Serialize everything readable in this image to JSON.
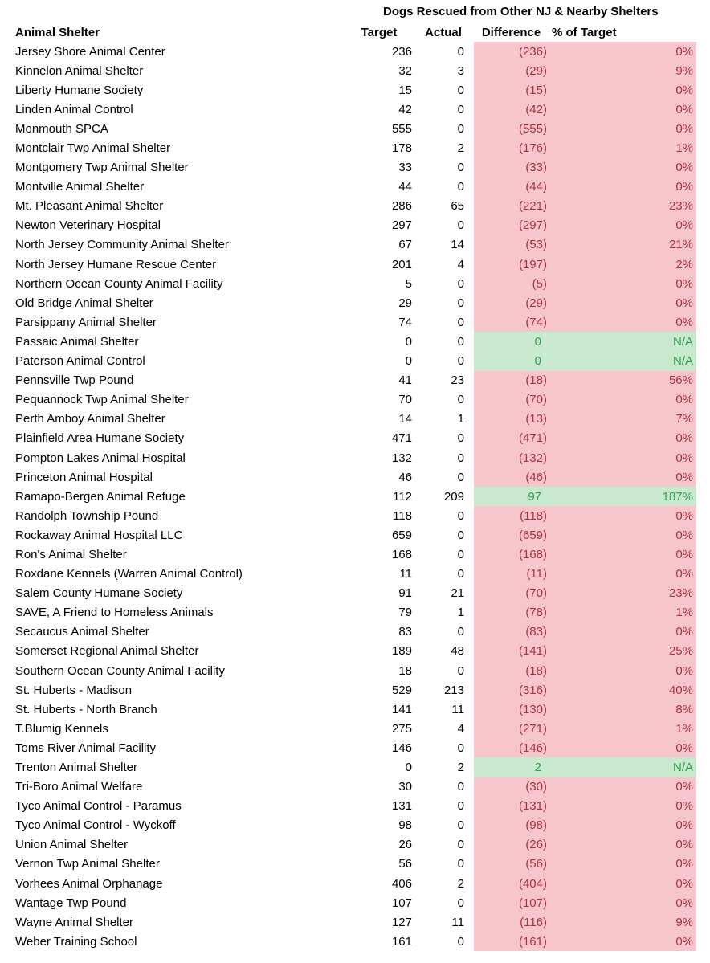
{
  "title": "Dogs Rescued from Other NJ & Nearby Shelters",
  "columns": {
    "shelter": "Animal Shelter",
    "target": "Target",
    "actual": "Actual",
    "difference": "Difference",
    "pct": "% of Target"
  },
  "colors": {
    "negative_bg": "#f7c6cc",
    "negative_text": "#ae2f40",
    "positive_bg": "#c9e9ce",
    "positive_text": "#2f9e50"
  },
  "rows": [
    {
      "shelter": "Jersey Shore Animal Center",
      "target": "236",
      "actual": "0",
      "difference": "(236)",
      "pct": "0%",
      "status": "neg"
    },
    {
      "shelter": "Kinnelon Animal Shelter",
      "target": "32",
      "actual": "3",
      "difference": "(29)",
      "pct": "9%",
      "status": "neg"
    },
    {
      "shelter": "Liberty Humane Society",
      "target": "15",
      "actual": "0",
      "difference": "(15)",
      "pct": "0%",
      "status": "neg"
    },
    {
      "shelter": "Linden Animal Control",
      "target": "42",
      "actual": "0",
      "difference": "(42)",
      "pct": "0%",
      "status": "neg"
    },
    {
      "shelter": "Monmouth SPCA",
      "target": "555",
      "actual": "0",
      "difference": "(555)",
      "pct": "0%",
      "status": "neg"
    },
    {
      "shelter": "Montclair Twp Animal Shelter",
      "target": "178",
      "actual": "2",
      "difference": "(176)",
      "pct": "1%",
      "status": "neg"
    },
    {
      "shelter": "Montgomery Twp Animal Shelter",
      "target": "33",
      "actual": "0",
      "difference": "(33)",
      "pct": "0%",
      "status": "neg"
    },
    {
      "shelter": "Montville Animal Shelter",
      "target": "44",
      "actual": "0",
      "difference": "(44)",
      "pct": "0%",
      "status": "neg"
    },
    {
      "shelter": "Mt. Pleasant Animal Shelter",
      "target": "286",
      "actual": "65",
      "difference": "(221)",
      "pct": "23%",
      "status": "neg"
    },
    {
      "shelter": "Newton Veterinary Hospital",
      "target": "297",
      "actual": "0",
      "difference": "(297)",
      "pct": "0%",
      "status": "neg"
    },
    {
      "shelter": "North Jersey Community Animal Shelter",
      "target": "67",
      "actual": "14",
      "difference": "(53)",
      "pct": "21%",
      "status": "neg"
    },
    {
      "shelter": "North Jersey Humane Rescue Center",
      "target": "201",
      "actual": "4",
      "difference": "(197)",
      "pct": "2%",
      "status": "neg"
    },
    {
      "shelter": "Northern Ocean County Animal Facility",
      "target": "5",
      "actual": "0",
      "difference": "(5)",
      "pct": "0%",
      "status": "neg"
    },
    {
      "shelter": "Old Bridge Animal Shelter",
      "target": "29",
      "actual": "0",
      "difference": "(29)",
      "pct": "0%",
      "status": "neg"
    },
    {
      "shelter": "Parsippany Animal Shelter",
      "target": "74",
      "actual": "0",
      "difference": "(74)",
      "pct": "0%",
      "status": "neg"
    },
    {
      "shelter": "Passaic Animal Shelter",
      "target": "0",
      "actual": "0",
      "difference": "0",
      "pct": "N/A",
      "status": "pos"
    },
    {
      "shelter": "Paterson Animal Control",
      "target": "0",
      "actual": "0",
      "difference": "0",
      "pct": "N/A",
      "status": "pos"
    },
    {
      "shelter": "Pennsville Twp Pound",
      "target": "41",
      "actual": "23",
      "difference": "(18)",
      "pct": "56%",
      "status": "neg"
    },
    {
      "shelter": "Pequannock Twp Animal Shelter",
      "target": "70",
      "actual": "0",
      "difference": "(70)",
      "pct": "0%",
      "status": "neg"
    },
    {
      "shelter": "Perth Amboy Animal Shelter",
      "target": "14",
      "actual": "1",
      "difference": "(13)",
      "pct": "7%",
      "status": "neg"
    },
    {
      "shelter": "Plainfield Area Humane Society",
      "target": "471",
      "actual": "0",
      "difference": "(471)",
      "pct": "0%",
      "status": "neg"
    },
    {
      "shelter": "Pompton Lakes Animal Hospital",
      "target": "132",
      "actual": "0",
      "difference": "(132)",
      "pct": "0%",
      "status": "neg"
    },
    {
      "shelter": "Princeton Animal Hospital",
      "target": "46",
      "actual": "0",
      "difference": "(46)",
      "pct": "0%",
      "status": "neg"
    },
    {
      "shelter": "Ramapo-Bergen Animal Refuge",
      "target": "112",
      "actual": "209",
      "difference": "97",
      "pct": "187%",
      "status": "pos"
    },
    {
      "shelter": "Randolph Township Pound",
      "target": "118",
      "actual": "0",
      "difference": "(118)",
      "pct": "0%",
      "status": "neg"
    },
    {
      "shelter": "Rockaway Animal Hospital LLC",
      "target": "659",
      "actual": "0",
      "difference": "(659)",
      "pct": "0%",
      "status": "neg"
    },
    {
      "shelter": "Ron's Animal Shelter",
      "target": "168",
      "actual": "0",
      "difference": "(168)",
      "pct": "0%",
      "status": "neg"
    },
    {
      "shelter": "Roxdane Kennels (Warren Animal Control)",
      "target": "11",
      "actual": "0",
      "difference": "(11)",
      "pct": "0%",
      "status": "neg"
    },
    {
      "shelter": "Salem County Humane Society",
      "target": "91",
      "actual": "21",
      "difference": "(70)",
      "pct": "23%",
      "status": "neg"
    },
    {
      "shelter": "SAVE, A Friend to Homeless Animals",
      "target": "79",
      "actual": "1",
      "difference": "(78)",
      "pct": "1%",
      "status": "neg"
    },
    {
      "shelter": "Secaucus Animal Shelter",
      "target": "83",
      "actual": "0",
      "difference": "(83)",
      "pct": "0%",
      "status": "neg"
    },
    {
      "shelter": "Somerset Regional Animal Shelter",
      "target": "189",
      "actual": "48",
      "difference": "(141)",
      "pct": "25%",
      "status": "neg"
    },
    {
      "shelter": "Southern Ocean County Animal Facility",
      "target": "18",
      "actual": "0",
      "difference": "(18)",
      "pct": "0%",
      "status": "neg"
    },
    {
      "shelter": "St. Huberts - Madison",
      "target": "529",
      "actual": "213",
      "difference": "(316)",
      "pct": "40%",
      "status": "neg"
    },
    {
      "shelter": "St. Huberts - North Branch",
      "target": "141",
      "actual": "11",
      "difference": "(130)",
      "pct": "8%",
      "status": "neg"
    },
    {
      "shelter": "T.Blumig Kennels",
      "target": "275",
      "actual": "4",
      "difference": "(271)",
      "pct": "1%",
      "status": "neg"
    },
    {
      "shelter": "Toms River Animal Facility",
      "target": "146",
      "actual": "0",
      "difference": "(146)",
      "pct": "0%",
      "status": "neg"
    },
    {
      "shelter": "Trenton Animal Shelter",
      "target": "0",
      "actual": "2",
      "difference": "2",
      "pct": "N/A",
      "status": "pos"
    },
    {
      "shelter": "Tri-Boro Animal Welfare",
      "target": "30",
      "actual": "0",
      "difference": "(30)",
      "pct": "0%",
      "status": "neg"
    },
    {
      "shelter": "Tyco Animal Control - Paramus",
      "target": "131",
      "actual": "0",
      "difference": "(131)",
      "pct": "0%",
      "status": "neg"
    },
    {
      "shelter": "Tyco Animal Control - Wyckoff",
      "target": "98",
      "actual": "0",
      "difference": "(98)",
      "pct": "0%",
      "status": "neg"
    },
    {
      "shelter": "Union Animal Shelter",
      "target": "26",
      "actual": "0",
      "difference": "(26)",
      "pct": "0%",
      "status": "neg"
    },
    {
      "shelter": "Vernon Twp Animal Shelter",
      "target": "56",
      "actual": "0",
      "difference": "(56)",
      "pct": "0%",
      "status": "neg"
    },
    {
      "shelter": "Vorhees Animal Orphanage",
      "target": "406",
      "actual": "2",
      "difference": "(404)",
      "pct": "0%",
      "status": "neg"
    },
    {
      "shelter": "Wantage Twp Pound",
      "target": "107",
      "actual": "0",
      "difference": "(107)",
      "pct": "0%",
      "status": "neg"
    },
    {
      "shelter": "Wayne Animal Shelter",
      "target": "127",
      "actual": "11",
      "difference": "(116)",
      "pct": "9%",
      "status": "neg"
    },
    {
      "shelter": "Weber Training School",
      "target": "161",
      "actual": "0",
      "difference": "(161)",
      "pct": "0%",
      "status": "neg"
    }
  ]
}
